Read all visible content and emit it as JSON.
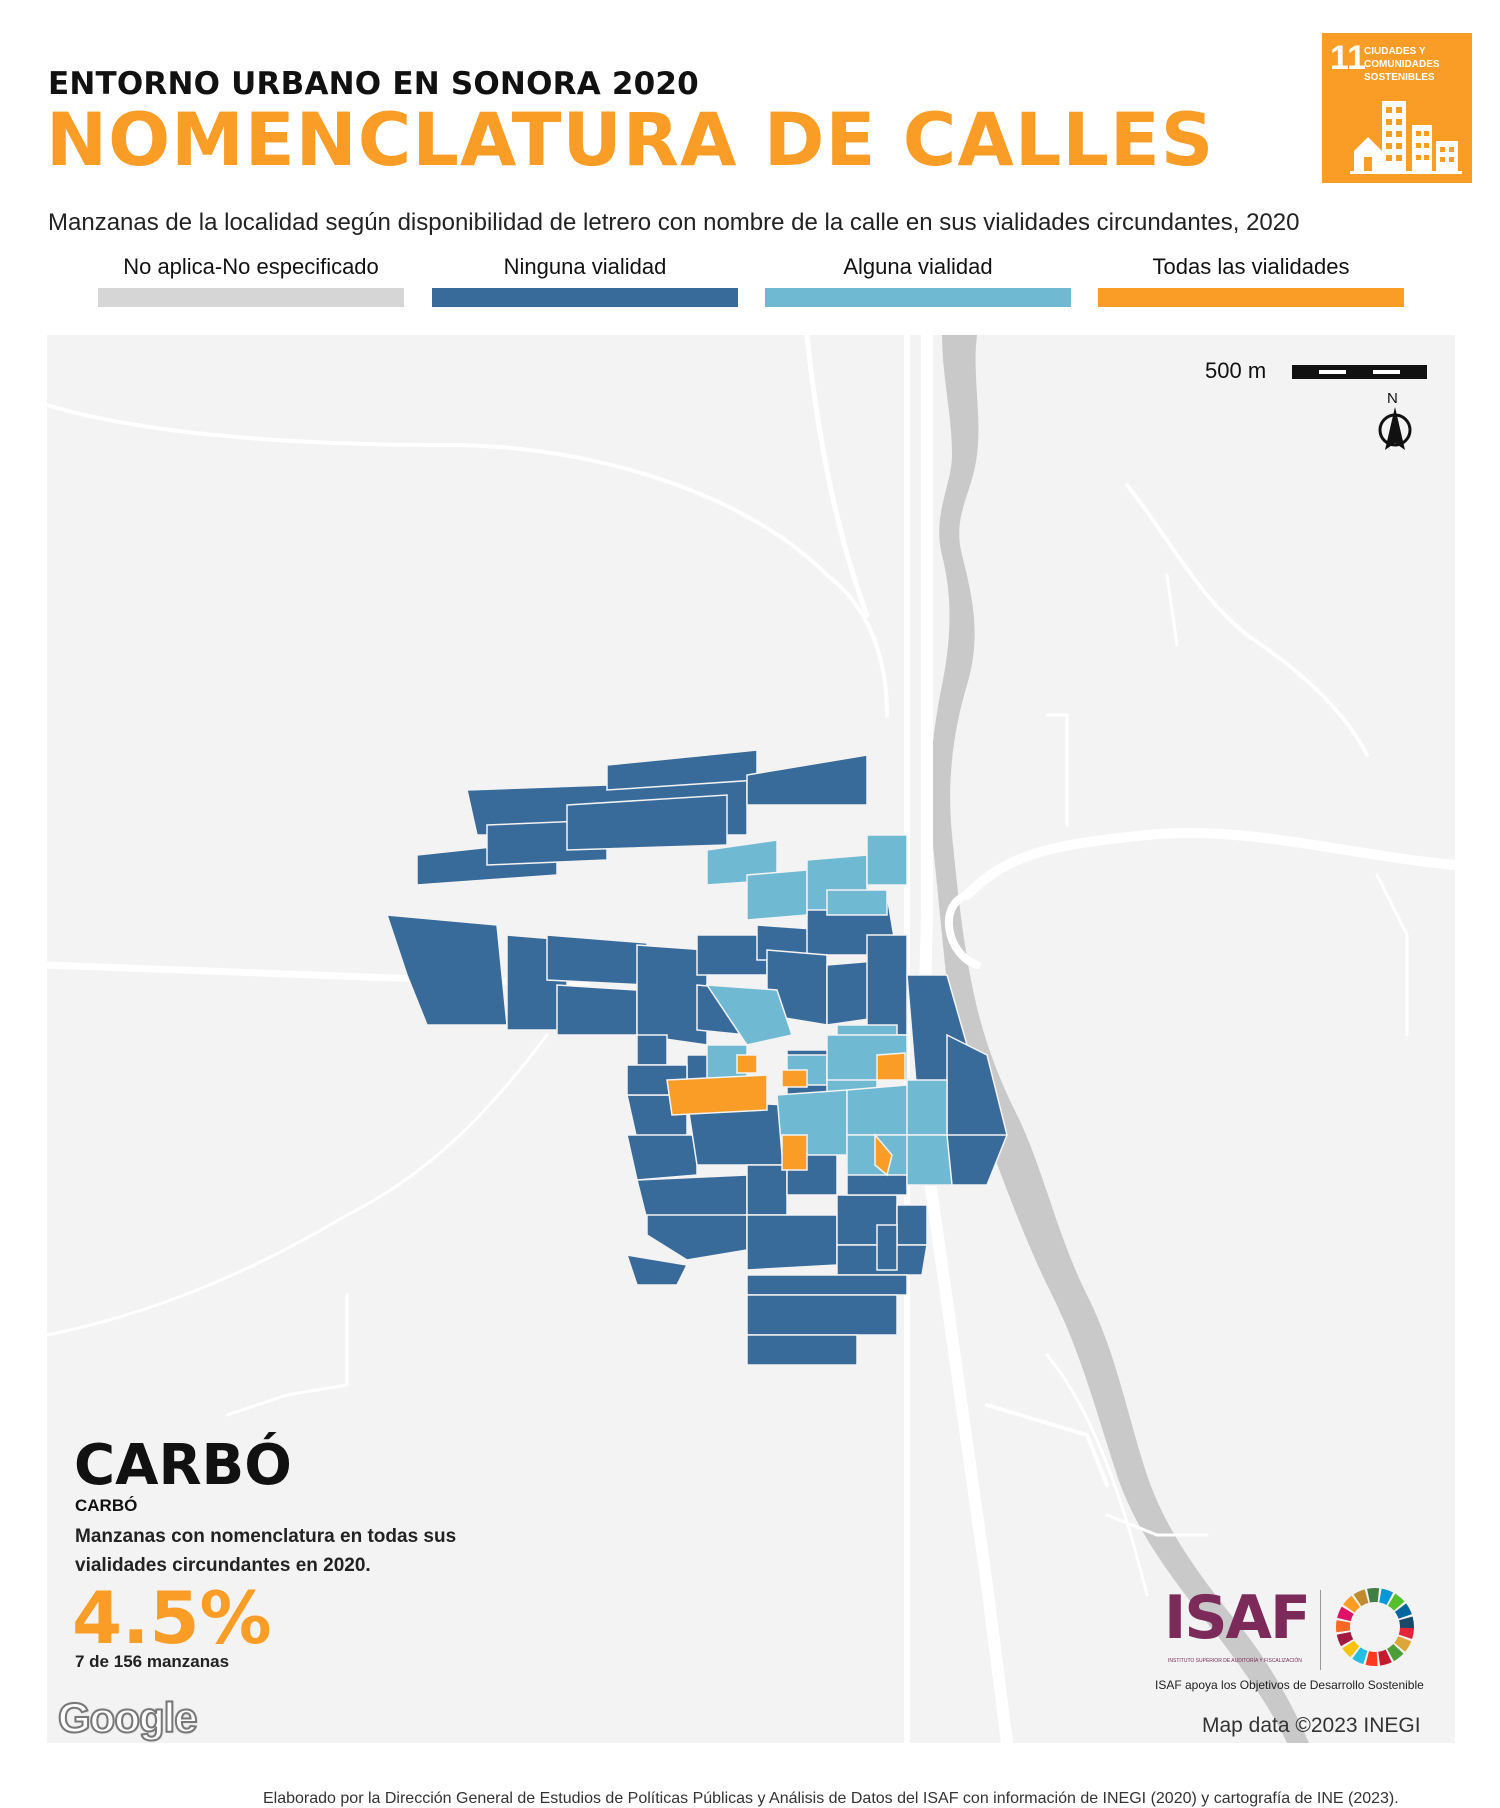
{
  "header": {
    "supertitle": "ENTORNO URBANO EN SONORA 2020",
    "title": "NOMENCLATURA DE CALLES",
    "subtitle": "Manzanas de la localidad según disponibilidad de letrero con nombre de la calle en sus vialidades circundantes, 2020"
  },
  "sdg_badge": {
    "number": "11",
    "text": "CIUDADES Y COMUNIDADES SOSTENIBLES",
    "color": "#f99d26",
    "icon": "city-buildings-icon"
  },
  "legend": [
    {
      "label": "No aplica-No especificado",
      "color": "#d6d6d6"
    },
    {
      "label": "Ninguna vialidad",
      "color": "#386a9a"
    },
    {
      "label": "Alguna vialidad",
      "color": "#6fb9d3"
    },
    {
      "label": "Todas las vialidades",
      "color": "#f99d26"
    }
  ],
  "map": {
    "scale_label": "500 m",
    "north_label": "N",
    "attribution": "Map data ©2023 INEGI",
    "google_logo": "Google",
    "background_color": "#f3f3f3",
    "river_color": "#c9c9c9",
    "road_color": "#ffffff"
  },
  "locality": {
    "name": "CARBÓ",
    "municipality": "CARBÓ",
    "stat_description": "Manzanas con nomenclatura en todas sus vialidades circundantes en 2020.",
    "percentage": "4.5%",
    "count_text": "7 de 156 manzanas"
  },
  "isaf": {
    "logo": "ISAF",
    "subtitle": "INSTITUTO SUPERIOR DE AUDITORÍA Y FISCALIZACIÓN",
    "tagline": "ISAF apoya los Objetivos de Desarrollo Sostenible"
  },
  "footer": "Elaborado por la Dirección General de Estudios de Políticas Públicas y Análisis de Datos del ISAF con información de INEGI (2020) y cartografía de INE (2023)."
}
